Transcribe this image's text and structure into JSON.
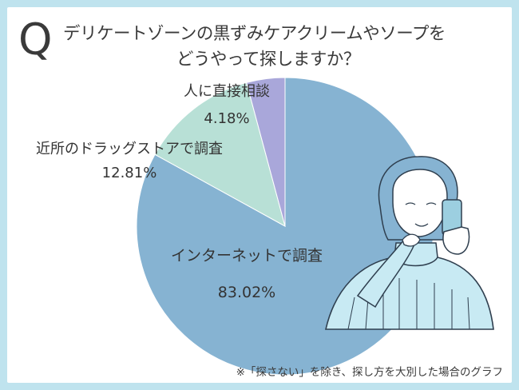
{
  "question": {
    "letter": "Q",
    "line1": "デリケートゾーンの黒ずみケアクリームやソープを",
    "line2": "どうやって探しますか？"
  },
  "chart_data": {
    "type": "pie",
    "slices": [
      {
        "label": "インターネットで調査",
        "value": 83.02,
        "value_label": "83.02%",
        "color": "#86b3d2"
      },
      {
        "label": "近所のドラッグストアで調査",
        "value": 12.81,
        "value_label": "12.81%",
        "color": "#b8e0d6"
      },
      {
        "label": "人に直接相談",
        "value": 4.18,
        "value_label": "4.18%",
        "color": "#a9a7da"
      }
    ]
  },
  "footnote": "※「探さない」を除き、探し方を大別した場合のグラフ"
}
